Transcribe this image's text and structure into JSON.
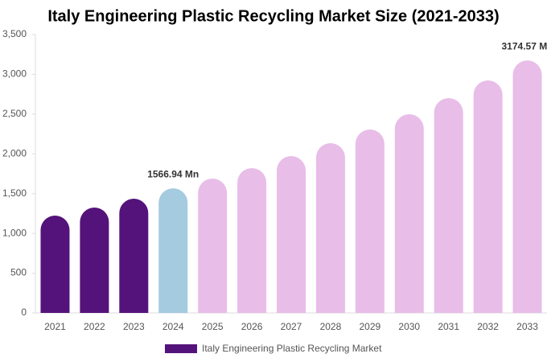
{
  "chart_data": {
    "type": "bar",
    "title": "Italy Engineering Plastic Recycling Market Size (2021-2033)",
    "categories": [
      "2021",
      "2022",
      "2023",
      "2024",
      "2025",
      "2026",
      "2027",
      "2028",
      "2029",
      "2030",
      "2031",
      "2032",
      "2033"
    ],
    "series": [
      {
        "name": "Italy Engineering Plastic Recycling Market",
        "color": "#54137a",
        "values": [
          1224,
          1325,
          1436,
          1566.94,
          1689,
          1821,
          1972,
          2134,
          2306,
          2498,
          2701,
          2923,
          3174.57
        ],
        "value_labels": [
          null,
          null,
          null,
          "1566.94 Mn",
          null,
          null,
          null,
          null,
          null,
          null,
          null,
          null,
          "3174.57 Mn"
        ],
        "colors": [
          "#54137a",
          "#54137a",
          "#54137a",
          "#a4cbdf",
          "#e8bde8",
          "#e8bde8",
          "#e8bde8",
          "#e8bde8",
          "#e8bde8",
          "#e8bde8",
          "#e8bde8",
          "#e8bde8",
          "#e8bde8"
        ]
      }
    ],
    "ylim": [
      0,
      3500
    ],
    "yticks": [
      0,
      500,
      {
        "value": 1000,
        "label": "1,000"
      },
      {
        "value": 1500,
        "label": "1,500"
      },
      {
        "value": 2000,
        "label": "2,000"
      },
      {
        "value": 2500,
        "label": "2,500"
      },
      {
        "value": 3000,
        "label": "3,000"
      },
      {
        "value": 3500,
        "label": "3,500"
      }
    ],
    "grid": false
  }
}
